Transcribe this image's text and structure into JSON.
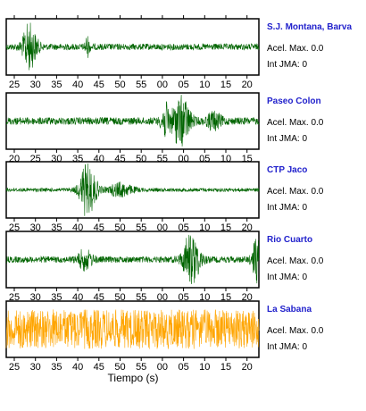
{
  "chart_data": {
    "type": "line",
    "xlabel": "Tiempo (s)",
    "panels": [
      {
        "station": "S.J. Montana, Barva",
        "acel_label": "Acel. Max. 0.0",
        "jma_label": "Int JMA: 0",
        "color": "#006400",
        "ticks": [
          "25",
          "30",
          "35",
          "40",
          "45",
          "50",
          "55",
          "00",
          "05",
          "10",
          "15",
          "20"
        ],
        "tick_top": true,
        "bursts": [
          {
            "center": 0.09,
            "amp": 0.85,
            "width": 0.03
          },
          {
            "center": 0.32,
            "amp": 0.35,
            "width": 0.01
          }
        ],
        "noise": 0.12
      },
      {
        "station": "Paseo Colon",
        "acel_label": "Acel. Max. 0.0",
        "jma_label": "Int JMA: 0",
        "color": "#006400",
        "ticks": [
          "20",
          "25",
          "30",
          "35",
          "40",
          "45",
          "50",
          "55",
          "00",
          "05",
          "10",
          "15"
        ],
        "tick_top": false,
        "bursts": [
          {
            "center": 0.69,
            "amp": 1.0,
            "width": 0.035
          },
          {
            "center": 0.63,
            "amp": 0.6,
            "width": 0.02
          },
          {
            "center": 0.82,
            "amp": 0.3,
            "width": 0.03
          }
        ],
        "noise": 0.14
      },
      {
        "station": "CTP Jaco",
        "acel_label": "Acel. Max. 0.0",
        "jma_label": "Int JMA: 0",
        "color": "#006400",
        "ticks": [
          "25",
          "30",
          "35",
          "40",
          "45",
          "50",
          "55",
          "00",
          "05",
          "10",
          "15",
          "20"
        ],
        "tick_top": false,
        "bursts": [
          {
            "center": 0.32,
            "amp": 1.0,
            "width": 0.035
          },
          {
            "center": 0.45,
            "amp": 0.25,
            "width": 0.05
          }
        ],
        "noise": 0.07
      },
      {
        "station": "Rio Cuarto",
        "acel_label": "Acel. Max. 0.0",
        "jma_label": "Int JMA: 0",
        "color": "#006400",
        "ticks": [
          "25",
          "30",
          "35",
          "40",
          "45",
          "50",
          "55",
          "00",
          "05",
          "10",
          "15",
          "20"
        ],
        "tick_top": false,
        "bursts": [
          {
            "center": 0.73,
            "amp": 1.0,
            "width": 0.035
          },
          {
            "center": 0.31,
            "amp": 0.35,
            "width": 0.03
          },
          {
            "center": 0.99,
            "amp": 0.8,
            "width": 0.02
          }
        ],
        "noise": 0.12
      },
      {
        "station": "La Sabana",
        "acel_label": "Acel. Max. 0.0",
        "jma_label": "Int JMA: 0",
        "color": "#FFA500",
        "ticks": [
          "25",
          "30",
          "35",
          "40",
          "45",
          "50",
          "55",
          "00",
          "05",
          "10",
          "15",
          "20"
        ],
        "tick_top": false,
        "bursts": [],
        "noise": 0.75
      }
    ]
  }
}
